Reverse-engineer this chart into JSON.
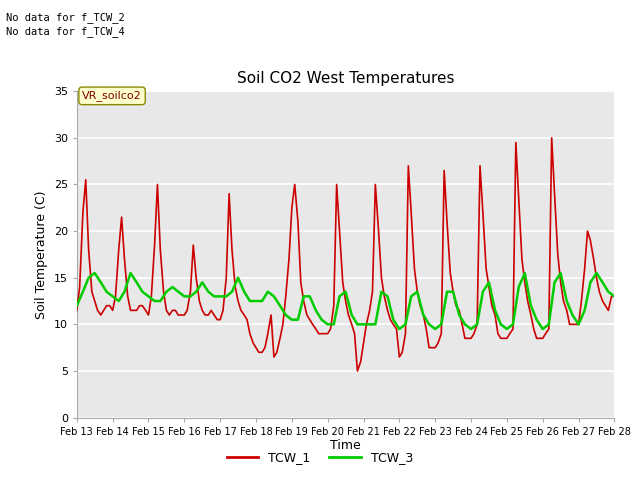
{
  "title": "Soil CO2 West Temperatures",
  "xlabel": "Time",
  "ylabel": "Soil Temperature (C)",
  "ylim": [
    0,
    35
  ],
  "xlim": [
    0,
    15
  ],
  "bg_color": "#e8e8e8",
  "grid_color": "white",
  "no_data_line1": "No data for f_TCW_2",
  "no_data_line2": "No data for f_TCW_4",
  "vr_label": "VR_soilco2",
  "xtick_labels": [
    "Feb 13",
    "Feb 14",
    "Feb 15",
    "Feb 16",
    "Feb 17",
    "Feb 18",
    "Feb 19",
    "Feb 20",
    "Feb 21",
    "Feb 22",
    "Feb 23",
    "Feb 24",
    "Feb 25",
    "Feb 26",
    "Feb 27",
    "Feb 28"
  ],
  "ytick_labels": [
    0,
    5,
    10,
    15,
    20,
    25,
    30,
    35
  ],
  "tcw1_color": "#cc0000",
  "tcw3_color": "#00cc00",
  "legend_entries": [
    "TCW_1",
    "TCW_3"
  ],
  "tcw1_x": [
    0.0,
    0.08,
    0.17,
    0.25,
    0.33,
    0.42,
    0.5,
    0.58,
    0.67,
    0.75,
    0.83,
    0.92,
    1.0,
    1.08,
    1.17,
    1.25,
    1.33,
    1.42,
    1.5,
    1.58,
    1.67,
    1.75,
    1.83,
    1.92,
    2.0,
    2.08,
    2.17,
    2.25,
    2.33,
    2.42,
    2.5,
    2.58,
    2.67,
    2.75,
    2.83,
    2.92,
    3.0,
    3.08,
    3.17,
    3.25,
    3.33,
    3.42,
    3.5,
    3.58,
    3.67,
    3.75,
    3.83,
    3.92,
    4.0,
    4.08,
    4.17,
    4.25,
    4.33,
    4.42,
    4.5,
    4.58,
    4.67,
    4.75,
    4.83,
    4.92,
    5.0,
    5.08,
    5.17,
    5.25,
    5.33,
    5.42,
    5.5,
    5.58,
    5.67,
    5.75,
    5.83,
    5.92,
    6.0,
    6.08,
    6.17,
    6.25,
    6.33,
    6.42,
    6.5,
    6.58,
    6.67,
    6.75,
    6.83,
    6.92,
    7.0,
    7.08,
    7.17,
    7.25,
    7.33,
    7.42,
    7.5,
    7.58,
    7.67,
    7.75,
    7.83,
    7.92,
    8.0,
    8.08,
    8.17,
    8.25,
    8.33,
    8.42,
    8.5,
    8.58,
    8.67,
    8.75,
    8.83,
    8.92,
    9.0,
    9.08,
    9.17,
    9.25,
    9.33,
    9.42,
    9.5,
    9.58,
    9.67,
    9.75,
    9.83,
    9.92,
    10.0,
    10.08,
    10.17,
    10.25,
    10.33,
    10.42,
    10.5,
    10.58,
    10.67,
    10.75,
    10.83,
    10.92,
    11.0,
    11.08,
    11.17,
    11.25,
    11.33,
    11.42,
    11.5,
    11.58,
    11.67,
    11.75,
    11.83,
    11.92,
    12.0,
    12.08,
    12.17,
    12.25,
    12.33,
    12.42,
    12.5,
    12.58,
    12.67,
    12.75,
    12.83,
    12.92,
    13.0,
    13.08,
    13.17,
    13.25,
    13.33,
    13.42,
    13.5,
    13.58,
    13.67,
    13.75,
    13.83,
    13.92,
    14.0,
    14.08,
    14.17,
    14.25,
    14.33,
    14.42,
    14.5,
    14.58,
    14.67,
    14.75,
    14.83,
    14.92,
    15.0
  ],
  "tcw1_y": [
    11.5,
    14.0,
    22.0,
    25.5,
    18.0,
    13.5,
    12.5,
    11.5,
    11.0,
    11.5,
    12.0,
    12.0,
    11.5,
    13.0,
    18.0,
    21.5,
    17.0,
    13.0,
    11.5,
    11.5,
    11.5,
    12.0,
    12.0,
    11.5,
    11.0,
    13.0,
    18.5,
    25.0,
    18.0,
    13.5,
    11.5,
    11.0,
    11.5,
    11.5,
    11.0,
    11.0,
    11.0,
    11.5,
    13.5,
    18.5,
    15.0,
    12.5,
    11.5,
    11.0,
    11.0,
    11.5,
    11.0,
    10.5,
    10.5,
    11.5,
    15.0,
    24.0,
    18.0,
    14.0,
    12.5,
    11.5,
    11.0,
    10.5,
    9.0,
    8.0,
    7.5,
    7.0,
    7.0,
    7.5,
    9.0,
    11.0,
    6.5,
    7.0,
    8.5,
    10.0,
    13.0,
    17.0,
    22.5,
    25.0,
    21.0,
    14.5,
    12.5,
    11.0,
    10.5,
    10.0,
    9.5,
    9.0,
    9.0,
    9.0,
    9.0,
    9.5,
    12.0,
    25.0,
    20.0,
    14.5,
    12.5,
    11.0,
    10.0,
    9.0,
    5.0,
    6.0,
    8.0,
    10.0,
    11.5,
    13.5,
    25.0,
    20.0,
    15.0,
    13.0,
    11.5,
    10.5,
    10.0,
    9.5,
    6.5,
    7.0,
    9.0,
    27.0,
    22.0,
    16.0,
    13.5,
    12.0,
    11.0,
    9.5,
    7.5,
    7.5,
    7.5,
    8.0,
    9.0,
    26.5,
    21.0,
    15.5,
    13.5,
    12.0,
    11.5,
    10.0,
    8.5,
    8.5,
    8.5,
    9.0,
    10.0,
    27.0,
    22.0,
    16.0,
    14.0,
    12.0,
    11.0,
    9.0,
    8.5,
    8.5,
    8.5,
    9.0,
    9.5,
    29.5,
    23.5,
    17.0,
    14.5,
    12.5,
    11.0,
    9.5,
    8.5,
    8.5,
    8.5,
    9.0,
    9.5,
    30.0,
    24.0,
    17.5,
    14.5,
    12.5,
    11.5,
    10.0,
    10.0,
    10.0,
    10.0,
    12.5,
    16.0,
    20.0,
    19.0,
    17.0,
    15.0,
    13.5,
    12.5,
    12.0,
    11.5,
    13.0,
    13.0
  ],
  "tcw3_x": [
    0.0,
    0.17,
    0.33,
    0.5,
    0.67,
    0.83,
    1.0,
    1.17,
    1.33,
    1.5,
    1.67,
    1.83,
    2.0,
    2.17,
    2.33,
    2.5,
    2.67,
    2.83,
    3.0,
    3.17,
    3.33,
    3.5,
    3.67,
    3.83,
    4.0,
    4.17,
    4.33,
    4.5,
    4.67,
    4.83,
    5.0,
    5.17,
    5.33,
    5.5,
    5.67,
    5.83,
    6.0,
    6.17,
    6.33,
    6.5,
    6.67,
    6.83,
    7.0,
    7.17,
    7.33,
    7.5,
    7.67,
    7.83,
    8.0,
    8.17,
    8.33,
    8.5,
    8.67,
    8.83,
    9.0,
    9.17,
    9.33,
    9.5,
    9.67,
    9.83,
    10.0,
    10.17,
    10.33,
    10.5,
    10.67,
    10.83,
    11.0,
    11.17,
    11.33,
    11.5,
    11.67,
    11.83,
    12.0,
    12.17,
    12.33,
    12.5,
    12.67,
    12.83,
    13.0,
    13.17,
    13.33,
    13.5,
    13.67,
    13.83,
    14.0,
    14.17,
    14.33,
    14.5,
    14.67,
    14.83,
    15.0
  ],
  "tcw3_y": [
    12.0,
    13.5,
    15.0,
    15.5,
    14.5,
    13.5,
    13.0,
    12.5,
    13.5,
    15.5,
    14.5,
    13.5,
    13.0,
    12.5,
    12.5,
    13.5,
    14.0,
    13.5,
    13.0,
    13.0,
    13.5,
    14.5,
    13.5,
    13.0,
    13.0,
    13.0,
    13.5,
    15.0,
    13.5,
    12.5,
    12.5,
    12.5,
    13.5,
    13.0,
    12.0,
    11.0,
    10.5,
    10.5,
    13.0,
    13.0,
    11.5,
    10.5,
    10.0,
    10.0,
    13.0,
    13.5,
    11.0,
    10.0,
    10.0,
    10.0,
    10.0,
    13.5,
    13.0,
    10.5,
    9.5,
    10.0,
    13.0,
    13.5,
    11.0,
    10.0,
    9.5,
    10.0,
    13.5,
    13.5,
    11.0,
    10.0,
    9.5,
    10.0,
    13.5,
    14.5,
    11.5,
    10.0,
    9.5,
    10.0,
    14.0,
    15.5,
    12.0,
    10.5,
    9.5,
    10.0,
    14.5,
    15.5,
    12.5,
    11.0,
    10.0,
    11.5,
    14.5,
    15.5,
    14.5,
    13.5,
    13.0
  ]
}
